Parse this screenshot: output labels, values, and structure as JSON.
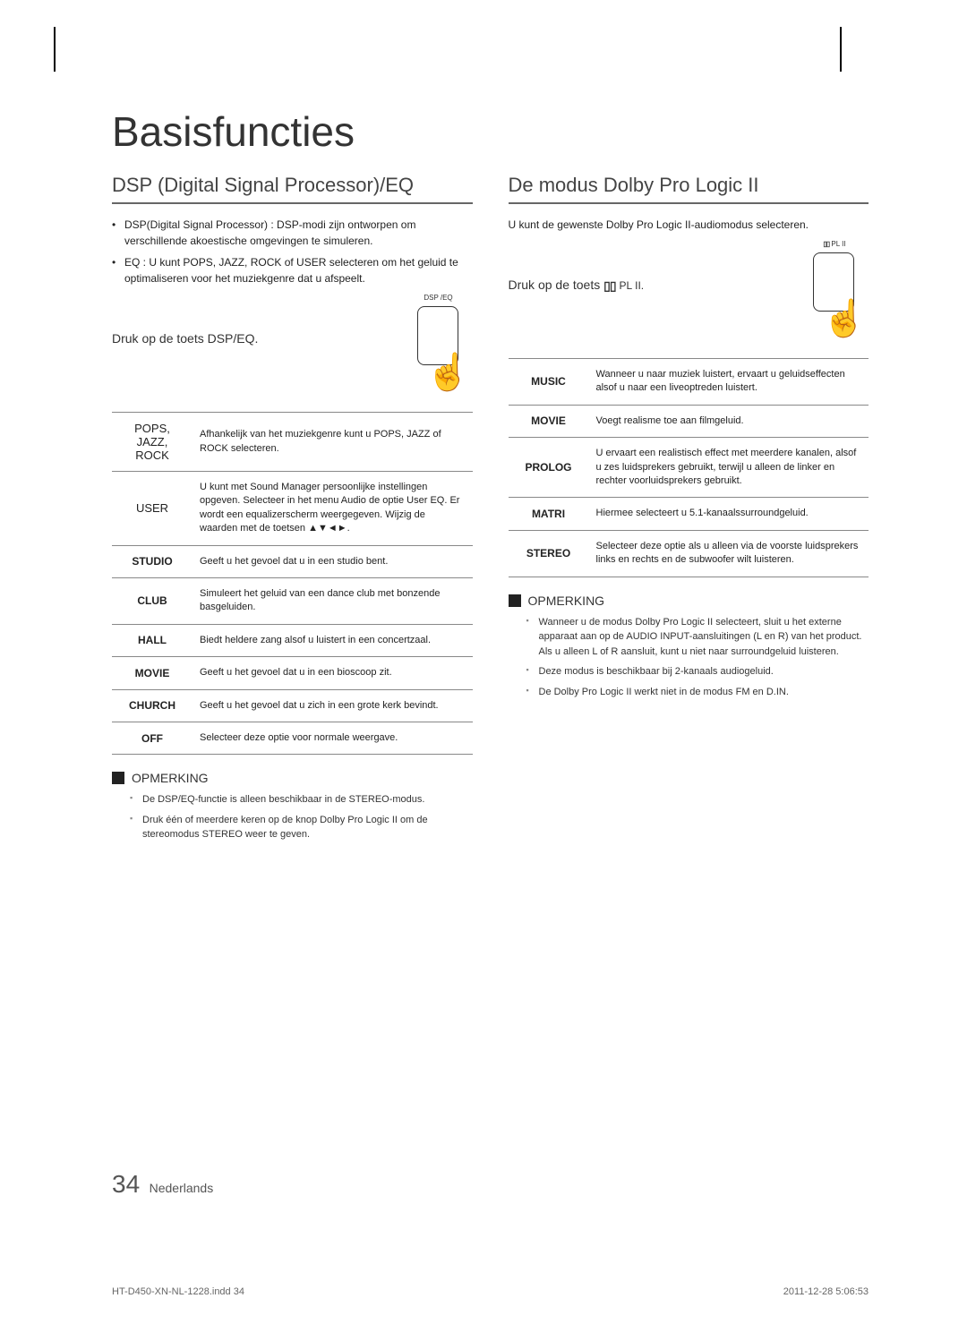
{
  "title": "Basisfuncties",
  "left": {
    "heading": "DSP (Digital Signal Processor)/EQ",
    "bullets": [
      "DSP(Digital Signal Processor) : DSP-modi zijn ontworpen om verschillende akoestische omgevingen te simuleren.",
      "EQ : U kunt POPS, JAZZ, ROCK of USER selecteren om het geluid te optimaliseren voor het muziekgenre dat u afspeelt."
    ],
    "subline": "Druk op de toets DSP/EQ.",
    "remoteLabel": "DSP /EQ",
    "tableRows": [
      {
        "label": "POPS, JAZZ, ROCK",
        "labelClass": "light",
        "desc": "Afhankelijk van het muziekgenre kunt u POPS, JAZZ of ROCK selecteren."
      },
      {
        "label": "USER",
        "labelClass": "light",
        "desc": "U kunt met Sound Manager persoonlijke instellingen opgeven. Selecteer in het menu Audio de optie User EQ. Er wordt een equalizerscherm weergegeven. Wijzig de waarden met de toetsen ▲▼◄►."
      },
      {
        "label": "STUDIO",
        "labelClass": "",
        "desc": "Geeft u het gevoel dat u in een studio bent."
      },
      {
        "label": "CLUB",
        "labelClass": "",
        "desc": "Simuleert het geluid van een dance club met bonzende basgeluiden."
      },
      {
        "label": "HALL",
        "labelClass": "",
        "desc": "Biedt heldere zang alsof u luistert in een concertzaal."
      },
      {
        "label": "MOVIE",
        "labelClass": "",
        "desc": "Geeft u het gevoel dat u in een bioscoop zit."
      },
      {
        "label": "CHURCH",
        "labelClass": "",
        "desc": "Geeft u het gevoel dat u zich in een grote kerk bevindt."
      },
      {
        "label": "OFF",
        "labelClass": "",
        "desc": "Selecteer deze optie voor normale weergave."
      }
    ],
    "noteTitle": "OPMERKING",
    "notes": [
      "De DSP/EQ-functie is alleen beschikbaar in de STEREO-modus.",
      "Druk één of meerdere keren op de knop Dolby Pro Logic II om de stereomodus STEREO weer te geven."
    ]
  },
  "right": {
    "heading": "De modus Dolby Pro Logic II",
    "intro": "U kunt de gewenste Dolby Pro Logic II-audiomodus selecteren.",
    "pressLine": "Druk op de toets",
    "pl2Text": "PL II.",
    "remoteLabel": "      PL II",
    "tableRows": [
      {
        "label": "MUSIC",
        "desc": "Wanneer u naar muziek luistert, ervaart u geluidseffecten alsof u naar een liveoptreden luistert."
      },
      {
        "label": "MOVIE",
        "desc": "Voegt realisme toe aan filmgeluid."
      },
      {
        "label": "PROLOG",
        "desc": "U ervaart een realistisch effect met meerdere kanalen, alsof u zes luidsprekers gebruikt, terwijl u alleen de linker en rechter voorluidsprekers gebruikt."
      },
      {
        "label": "MATRI",
        "desc": "Hiermee selecteert u 5.1-kanaalssurroundgeluid."
      },
      {
        "label": "STEREO",
        "desc": "Selecteer deze optie als u alleen via de voorste luidsprekers links en rechts en de subwoofer wilt luisteren."
      }
    ],
    "noteTitle": "OPMERKING",
    "notes": [
      "Wanneer u de modus Dolby Pro Logic II selecteert, sluit u het externe apparaat aan op de AUDIO INPUT-aansluitingen (L en R) van het product. Als u alleen L of R aansluit, kunt u niet naar surroundgeluid luisteren.",
      "Deze modus is beschikbaar bij 2-kanaals audiogeluid.",
      "De Dolby Pro Logic II werkt niet in de modus FM en D.IN."
    ]
  },
  "footer": {
    "pageNum": "34",
    "lang": "Nederlands",
    "printLeft": "HT-D450-XN-NL-1228.indd   34",
    "printRight": "2011-12-28     5:06:53"
  }
}
